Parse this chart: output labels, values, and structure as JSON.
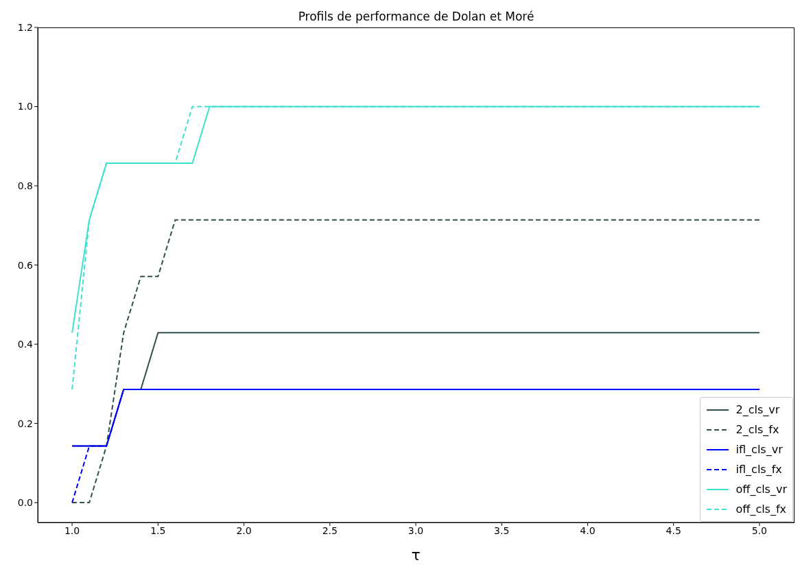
{
  "chart_data": {
    "type": "line",
    "title": "Profils de performance de Dolan et Moré",
    "xlabel": "τ",
    "xlim": [
      0.8,
      5.2
    ],
    "ylim": [
      -0.05,
      1.2
    ],
    "xticks": [
      {
        "value": 1,
        "label": "1.0"
      },
      {
        "value": 1.5,
        "label": "1.5"
      },
      {
        "value": 2,
        "label": "2.0"
      },
      {
        "value": 2.5,
        "label": "2.5"
      },
      {
        "value": 3,
        "label": "3.0"
      },
      {
        "value": 3.5,
        "label": "3.5"
      },
      {
        "value": 4,
        "label": "4.0"
      },
      {
        "value": 4.5,
        "label": "4.5"
      },
      {
        "value": 5,
        "label": "5.0"
      }
    ],
    "yticks": [
      {
        "value": 0,
        "label": "0.0"
      },
      {
        "value": 0.2,
        "label": "0.2"
      },
      {
        "value": 0.4,
        "label": "0.4"
      },
      {
        "value": 0.6,
        "label": "0.6"
      },
      {
        "value": 0.8,
        "label": "0.8"
      },
      {
        "value": 1,
        "label": "1.0"
      },
      {
        "value": 1.2,
        "label": "1.2"
      }
    ],
    "grid": false,
    "legend": "bottom right",
    "marker": "none",
    "series": [
      {
        "name": "2_cls_vr",
        "color": "#2f4f4f",
        "line_style": "solid",
        "x": [
          1.0,
          1.2,
          1.3,
          1.4,
          1.5,
          5.0
        ],
        "values": [
          0.143,
          0.143,
          0.286,
          0.286,
          0.429,
          0.429
        ]
      },
      {
        "name": "2_cls_fx",
        "color": "#2f4f4f",
        "line_style": "dashed",
        "x": [
          1.0,
          1.1,
          1.2,
          1.3,
          1.4,
          1.5,
          1.6,
          5.0
        ],
        "values": [
          0,
          0,
          0.143,
          0.429,
          0.571,
          0.571,
          0.714,
          0.714
        ]
      },
      {
        "name": "ifl_cls_vr",
        "color": "#0000ff",
        "line_style": "solid",
        "x": [
          1.0,
          1.2,
          1.3,
          5.0
        ],
        "values": [
          0.143,
          0.143,
          0.286,
          0.286
        ]
      },
      {
        "name": "ifl_cls_fx",
        "color": "#0000ff",
        "line_style": "dashed",
        "x": [
          1.0,
          1.1,
          1.2,
          1.3,
          5.0
        ],
        "values": [
          0,
          0.143,
          0.143,
          0.286,
          0.286
        ]
      },
      {
        "name": "off_cls_vr",
        "color": "#40e0d0",
        "line_style": "solid",
        "x": [
          1.0,
          1.1,
          1.2,
          1.7,
          1.8,
          5.0
        ],
        "values": [
          0.429,
          0.714,
          0.857,
          0.857,
          1,
          1
        ]
      },
      {
        "name": "off_cls_fx",
        "color": "#40e0d0",
        "line_style": "dashed",
        "x": [
          1.0,
          1.1,
          1.2,
          1.6,
          1.7,
          5.0
        ],
        "values": [
          0.286,
          0.714,
          0.857,
          0.857,
          1,
          1
        ]
      }
    ]
  }
}
